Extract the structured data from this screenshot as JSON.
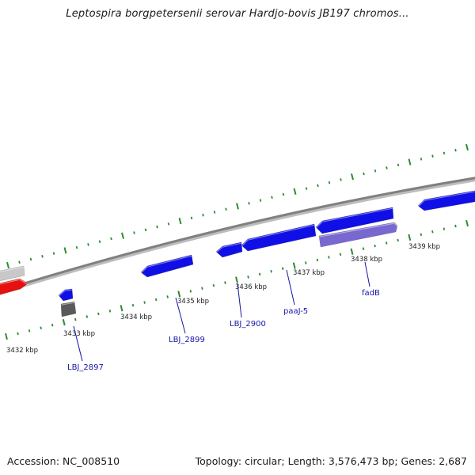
{
  "title": "Leptospira borgpetersenii serovar Hardjo-bovis JB197 chromos...",
  "footer": {
    "accession": "Accession: NC_008510",
    "summary": "Topology: circular; Length: 3,576,473 bp; Genes: 2,687"
  },
  "colors": {
    "backbone": "#8a8a8a",
    "tick": "#2e8b2e",
    "gene_forward": "#1010e6",
    "gene_highlight": "#7868d0",
    "gene_red": "#e61010",
    "gene_gray": "#5a5a5a",
    "gene_light_gray": "#c8c8c8",
    "label_line": "#1616a8"
  },
  "scale_ticks": [
    {
      "label": "3432 kbp"
    },
    {
      "label": "3433 kbp"
    },
    {
      "label": "3434 kbp"
    },
    {
      "label": "3435 kbp"
    },
    {
      "label": "3436 kbp"
    },
    {
      "label": "3437 kbp"
    },
    {
      "label": "3438 kbp"
    },
    {
      "label": "3439 kbp"
    }
  ],
  "genes": [
    {
      "id": "red-left",
      "color": "gene_red",
      "strand": "forward"
    },
    {
      "id": "gray-left",
      "color": "gene_light_gray",
      "strand": "forward"
    },
    {
      "id": "LBJ_2897-small",
      "color": "gene_forward",
      "strand": "reverse"
    },
    {
      "id": "LBJ_2897-gray",
      "color": "gene_gray",
      "strand": "forward"
    },
    {
      "id": "LBJ_2899",
      "color": "gene_forward",
      "strand": "reverse"
    },
    {
      "id": "LBJ_2900",
      "color": "gene_forward",
      "strand": "reverse"
    },
    {
      "id": "paaJ-5",
      "color": "gene_forward",
      "strand": "reverse"
    },
    {
      "id": "fadB",
      "color": "gene_forward",
      "strand": "reverse"
    },
    {
      "id": "fadB-alt",
      "color": "gene_highlight",
      "strand": "forward"
    },
    {
      "id": "right-edge",
      "color": "gene_forward",
      "strand": "reverse"
    }
  ],
  "gene_labels": [
    {
      "text": "LBJ_2897"
    },
    {
      "text": "LBJ_2899"
    },
    {
      "text": "LBJ_2900"
    },
    {
      "text": "paaJ-5"
    },
    {
      "text": "fadB"
    }
  ]
}
